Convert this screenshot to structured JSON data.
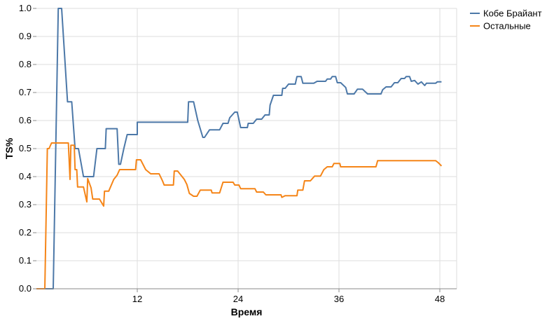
{
  "chart_data": {
    "type": "line",
    "xlabel": "Время",
    "ylabel": "TS%",
    "xlim": [
      0,
      50
    ],
    "ylim": [
      0,
      1
    ],
    "x_ticks": [
      12,
      24,
      36,
      48
    ],
    "y_ticks": [
      "0.0",
      "0.1",
      "0.2",
      "0.3",
      "0.4",
      "0.5",
      "0.6",
      "0.7",
      "0.8",
      "0.9",
      "1.0"
    ],
    "grid": true,
    "legend_position": "top-right",
    "series": [
      {
        "name": "Кобе Брайант",
        "color": "#4c78a8",
        "points": [
          [
            1.0,
            0.0
          ],
          [
            2.0,
            0.0
          ],
          [
            2.6,
            1.0
          ],
          [
            3.0,
            1.0
          ],
          [
            3.7,
            0.667
          ],
          [
            4.2,
            0.667
          ],
          [
            4.6,
            0.5
          ],
          [
            5.0,
            0.5
          ],
          [
            5.6,
            0.4
          ],
          [
            6.8,
            0.4
          ],
          [
            7.2,
            0.5
          ],
          [
            8.2,
            0.5
          ],
          [
            8.3,
            0.571
          ],
          [
            9.6,
            0.571
          ],
          [
            9.8,
            0.444
          ],
          [
            10.0,
            0.444
          ],
          [
            10.4,
            0.5
          ],
          [
            10.8,
            0.55
          ],
          [
            12.0,
            0.55
          ],
          [
            12.0,
            0.594
          ],
          [
            18.0,
            0.594
          ],
          [
            18.1,
            0.667
          ],
          [
            18.7,
            0.667
          ],
          [
            19.2,
            0.6
          ],
          [
            19.8,
            0.54
          ],
          [
            20.0,
            0.54
          ],
          [
            20.6,
            0.567
          ],
          [
            21.8,
            0.567
          ],
          [
            22.2,
            0.59
          ],
          [
            22.8,
            0.59
          ],
          [
            23.0,
            0.61
          ],
          [
            23.6,
            0.63
          ],
          [
            23.9,
            0.63
          ],
          [
            24.3,
            0.575
          ],
          [
            25.1,
            0.575
          ],
          [
            25.2,
            0.59
          ],
          [
            25.8,
            0.59
          ],
          [
            26.2,
            0.605
          ],
          [
            26.8,
            0.605
          ],
          [
            27.2,
            0.62
          ],
          [
            27.7,
            0.62
          ],
          [
            27.8,
            0.655
          ],
          [
            28.2,
            0.69
          ],
          [
            29.2,
            0.69
          ],
          [
            29.3,
            0.715
          ],
          [
            29.6,
            0.715
          ],
          [
            30.0,
            0.73
          ],
          [
            30.8,
            0.73
          ],
          [
            31.0,
            0.757
          ],
          [
            31.5,
            0.757
          ],
          [
            31.7,
            0.733
          ],
          [
            33.0,
            0.733
          ],
          [
            33.4,
            0.74
          ],
          [
            34.4,
            0.74
          ],
          [
            34.6,
            0.748
          ],
          [
            35.0,
            0.748
          ],
          [
            35.2,
            0.757
          ],
          [
            35.6,
            0.757
          ],
          [
            35.8,
            0.735
          ],
          [
            36.2,
            0.735
          ],
          [
            36.8,
            0.718
          ],
          [
            37.0,
            0.695
          ],
          [
            37.8,
            0.695
          ],
          [
            38.2,
            0.712
          ],
          [
            38.8,
            0.712
          ],
          [
            39.4,
            0.695
          ],
          [
            41.0,
            0.695
          ],
          [
            41.2,
            0.71
          ],
          [
            41.6,
            0.72
          ],
          [
            42.2,
            0.72
          ],
          [
            42.6,
            0.735
          ],
          [
            43.0,
            0.735
          ],
          [
            43.4,
            0.75
          ],
          [
            43.8,
            0.75
          ],
          [
            44.0,
            0.757
          ],
          [
            44.4,
            0.757
          ],
          [
            44.6,
            0.74
          ],
          [
            45.0,
            0.743
          ],
          [
            45.4,
            0.73
          ],
          [
            45.8,
            0.738
          ],
          [
            46.2,
            0.725
          ],
          [
            46.4,
            0.733
          ],
          [
            47.5,
            0.733
          ],
          [
            47.7,
            0.738
          ],
          [
            48.2,
            0.738
          ]
        ]
      },
      {
        "name": "Остальные",
        "color": "#f58518",
        "points": [
          [
            0.0,
            0.0
          ],
          [
            1.0,
            0.0
          ],
          [
            1.3,
            0.5
          ],
          [
            1.5,
            0.5
          ],
          [
            1.8,
            0.52
          ],
          [
            3.5,
            0.52
          ],
          [
            3.8,
            0.52
          ],
          [
            4.0,
            0.39
          ],
          [
            4.1,
            0.512
          ],
          [
            4.5,
            0.512
          ],
          [
            4.6,
            0.425
          ],
          [
            4.8,
            0.425
          ],
          [
            4.9,
            0.363
          ],
          [
            5.6,
            0.363
          ],
          [
            6.0,
            0.31
          ],
          [
            6.1,
            0.393
          ],
          [
            6.5,
            0.36
          ],
          [
            6.7,
            0.32
          ],
          [
            7.5,
            0.32
          ],
          [
            8.0,
            0.295
          ],
          [
            8.1,
            0.348
          ],
          [
            8.6,
            0.348
          ],
          [
            9.2,
            0.39
          ],
          [
            9.6,
            0.405
          ],
          [
            9.9,
            0.425
          ],
          [
            11.8,
            0.425
          ],
          [
            11.9,
            0.46
          ],
          [
            12.4,
            0.46
          ],
          [
            13.0,
            0.425
          ],
          [
            13.6,
            0.41
          ],
          [
            14.6,
            0.41
          ],
          [
            15.0,
            0.385
          ],
          [
            15.2,
            0.37
          ],
          [
            16.3,
            0.37
          ],
          [
            16.4,
            0.42
          ],
          [
            16.8,
            0.42
          ],
          [
            17.2,
            0.405
          ],
          [
            17.6,
            0.39
          ],
          [
            17.9,
            0.372
          ],
          [
            18.2,
            0.34
          ],
          [
            18.7,
            0.33
          ],
          [
            19.1,
            0.33
          ],
          [
            19.5,
            0.352
          ],
          [
            20.8,
            0.352
          ],
          [
            20.9,
            0.342
          ],
          [
            21.8,
            0.342
          ],
          [
            22.2,
            0.38
          ],
          [
            23.4,
            0.38
          ],
          [
            23.6,
            0.37
          ],
          [
            24.1,
            0.37
          ],
          [
            24.3,
            0.357
          ],
          [
            26.0,
            0.357
          ],
          [
            26.2,
            0.345
          ],
          [
            27.0,
            0.345
          ],
          [
            27.3,
            0.335
          ],
          [
            29.1,
            0.335
          ],
          [
            29.2,
            0.326
          ],
          [
            29.6,
            0.332
          ],
          [
            31.0,
            0.332
          ],
          [
            31.1,
            0.352
          ],
          [
            31.7,
            0.352
          ],
          [
            31.9,
            0.385
          ],
          [
            32.6,
            0.385
          ],
          [
            33.1,
            0.402
          ],
          [
            33.8,
            0.402
          ],
          [
            34.2,
            0.425
          ],
          [
            34.6,
            0.435
          ],
          [
            35.2,
            0.435
          ],
          [
            35.4,
            0.447
          ],
          [
            36.1,
            0.447
          ],
          [
            36.2,
            0.435
          ],
          [
            39.6,
            0.435
          ],
          [
            40.4,
            0.435
          ],
          [
            40.6,
            0.457
          ],
          [
            47.5,
            0.457
          ],
          [
            47.8,
            0.45
          ],
          [
            48.2,
            0.438
          ]
        ]
      }
    ]
  }
}
